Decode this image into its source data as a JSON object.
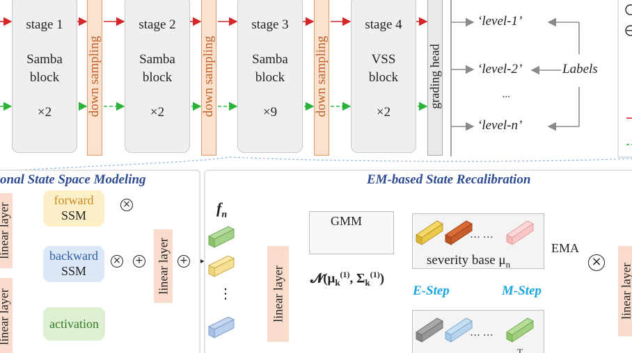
{
  "top": {
    "stages": [
      {
        "title": "stage 1",
        "block1": "Samba",
        "block2": "block",
        "mult": "×2"
      },
      {
        "title": "stage 2",
        "block1": "Samba",
        "block2": "block",
        "mult": "×2"
      },
      {
        "title": "stage 3",
        "block1": "Samba",
        "block2": "block",
        "mult": "×9"
      },
      {
        "title": "stage 4",
        "block1": "VSS",
        "block2": "block",
        "mult": "×2"
      }
    ],
    "down_sampling": "down sampling",
    "grading_head": "grading head",
    "levels": [
      "‘level-1’",
      "‘level-2’",
      "...",
      "‘level-n’"
    ],
    "labels": "Labels"
  },
  "left_panel": {
    "title": "onal State Space Modeling",
    "linear_layer": "linear layer",
    "forward": "forward",
    "backward": "backward",
    "ssm": "SSM",
    "activation": "activation"
  },
  "right_panel": {
    "title": "EM-based State Recalibration",
    "f_n": "f",
    "f_sub": "n",
    "gmm": "GMM",
    "normal_dist": "𝓝(μ",
    "normal_sup": "(1)",
    "normal_mid": "k",
    "normal_rest": ", Σ",
    "normal_end": ")",
    "severity_base": "severity base μ",
    "severity_sub": "n",
    "ema": "EMA",
    "e_step": "E-Step",
    "m_step": "M-Step",
    "ellipsis": "… …",
    "vdots": "⋮",
    "linear_layer": "linear layer",
    "t_partial": "T"
  },
  "colors": {
    "red_line": "#d6262a",
    "green_line": "#2bb339",
    "orange": "#e39a6a",
    "accent_blue": "#1aa7e0",
    "title_blue": "#2e4b8f"
  }
}
